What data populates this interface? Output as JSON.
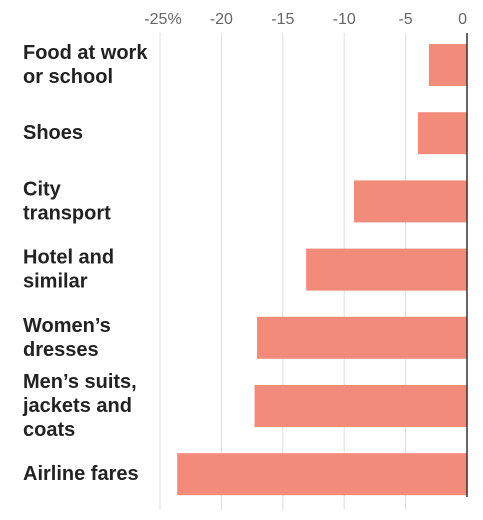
{
  "chart_data": {
    "type": "bar",
    "orientation": "horizontal",
    "categories": [
      [
        "Food at work",
        "or school"
      ],
      [
        "Shoes"
      ],
      [
        "City",
        "transport"
      ],
      [
        "Hotel and",
        "similar"
      ],
      [
        "Women’s",
        "dresses"
      ],
      [
        "Men’s suits,",
        "jackets and",
        "coats"
      ],
      [
        "Airline fares"
      ]
    ],
    "values": [
      -3.1,
      -4,
      -9.2,
      -13.1,
      -17.1,
      -17.3,
      -23.6
    ],
    "xlim": [
      -25,
      0
    ],
    "ticks": [
      {
        "value": -25,
        "label": "-25%"
      },
      {
        "value": -20,
        "label": "-20"
      },
      {
        "value": -15,
        "label": "-15"
      },
      {
        "value": -10,
        "label": "-10"
      },
      {
        "value": -5,
        "label": "-5"
      },
      {
        "value": 0,
        "label": "0"
      }
    ],
    "bar_color": "#f28b7a",
    "grid": true
  }
}
